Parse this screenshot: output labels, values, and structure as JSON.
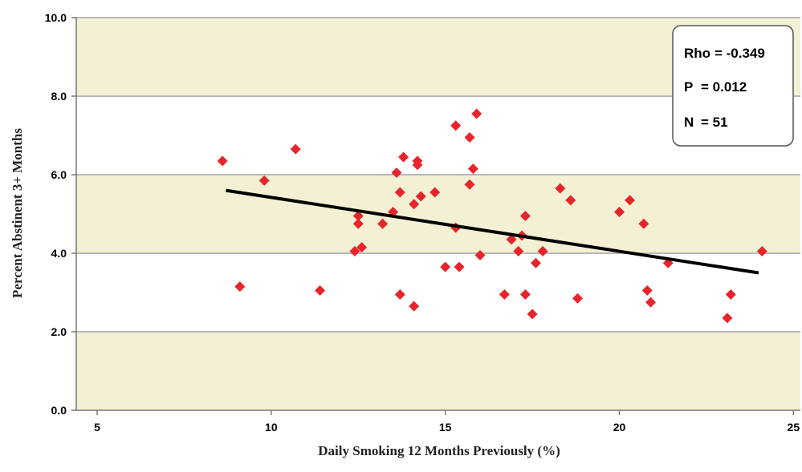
{
  "chart_data": {
    "type": "scatter",
    "xlabel": "Daily Smoking 12 Months Previously (%)",
    "ylabel": "Percent Abstinent 3+ Months",
    "xlim": [
      4.4,
      25.2
    ],
    "ylim": [
      0.0,
      10.0
    ],
    "x_ticks": [
      "5",
      "10",
      "15",
      "20",
      "25"
    ],
    "y_ticks": [
      "0.0",
      "2.0",
      "4.0",
      "6.0",
      "8.0",
      "10.0"
    ],
    "grid": "horizontal",
    "background_bands": true,
    "colors": {
      "point": "#e8242b",
      "trendline": "#000000",
      "band": "#f3f0d3",
      "gridline": "#b8b8b8"
    },
    "points": [
      {
        "x": 8.6,
        "y": 6.35
      },
      {
        "x": 9.1,
        "y": 3.15
      },
      {
        "x": 9.8,
        "y": 5.85
      },
      {
        "x": 10.7,
        "y": 6.65
      },
      {
        "x": 11.4,
        "y": 3.05
      },
      {
        "x": 12.4,
        "y": 4.05
      },
      {
        "x": 12.5,
        "y": 4.95
      },
      {
        "x": 12.5,
        "y": 4.75
      },
      {
        "x": 12.6,
        "y": 4.15
      },
      {
        "x": 13.2,
        "y": 4.75
      },
      {
        "x": 13.5,
        "y": 5.05
      },
      {
        "x": 13.6,
        "y": 6.05
      },
      {
        "x": 13.7,
        "y": 5.55
      },
      {
        "x": 13.7,
        "y": 2.95
      },
      {
        "x": 13.8,
        "y": 6.45
      },
      {
        "x": 14.1,
        "y": 5.25
      },
      {
        "x": 14.1,
        "y": 2.65
      },
      {
        "x": 14.2,
        "y": 6.25
      },
      {
        "x": 14.2,
        "y": 6.35
      },
      {
        "x": 14.3,
        "y": 5.45
      },
      {
        "x": 14.7,
        "y": 5.55
      },
      {
        "x": 15.0,
        "y": 3.65
      },
      {
        "x": 15.3,
        "y": 7.25
      },
      {
        "x": 15.3,
        "y": 4.65
      },
      {
        "x": 15.4,
        "y": 3.65
      },
      {
        "x": 15.7,
        "y": 6.95
      },
      {
        "x": 15.7,
        "y": 5.75
      },
      {
        "x": 15.8,
        "y": 6.15
      },
      {
        "x": 15.9,
        "y": 7.55
      },
      {
        "x": 16.0,
        "y": 3.95
      },
      {
        "x": 16.7,
        "y": 2.95
      },
      {
        "x": 16.9,
        "y": 4.35
      },
      {
        "x": 17.1,
        "y": 4.05
      },
      {
        "x": 17.2,
        "y": 4.45
      },
      {
        "x": 17.3,
        "y": 4.95
      },
      {
        "x": 17.3,
        "y": 2.95
      },
      {
        "x": 17.5,
        "y": 2.45
      },
      {
        "x": 17.6,
        "y": 3.75
      },
      {
        "x": 17.8,
        "y": 4.05
      },
      {
        "x": 18.3,
        "y": 5.65
      },
      {
        "x": 18.6,
        "y": 5.35
      },
      {
        "x": 18.8,
        "y": 2.85
      },
      {
        "x": 20.0,
        "y": 5.05
      },
      {
        "x": 20.3,
        "y": 5.35
      },
      {
        "x": 20.7,
        "y": 4.75
      },
      {
        "x": 20.8,
        "y": 3.05
      },
      {
        "x": 20.9,
        "y": 2.75
      },
      {
        "x": 21.4,
        "y": 3.75
      },
      {
        "x": 23.1,
        "y": 2.35
      },
      {
        "x": 23.2,
        "y": 2.95
      },
      {
        "x": 24.1,
        "y": 4.05
      }
    ],
    "trendline": {
      "x": [
        8.7,
        24.0
      ],
      "y": [
        5.6,
        3.5
      ]
    },
    "annotation": {
      "lines": [
        {
          "label": "Rho",
          "value": "= -0.349"
        },
        {
          "label": "P",
          "value": "= 0.012"
        },
        {
          "label": "N",
          "value": "= 51"
        }
      ]
    }
  }
}
